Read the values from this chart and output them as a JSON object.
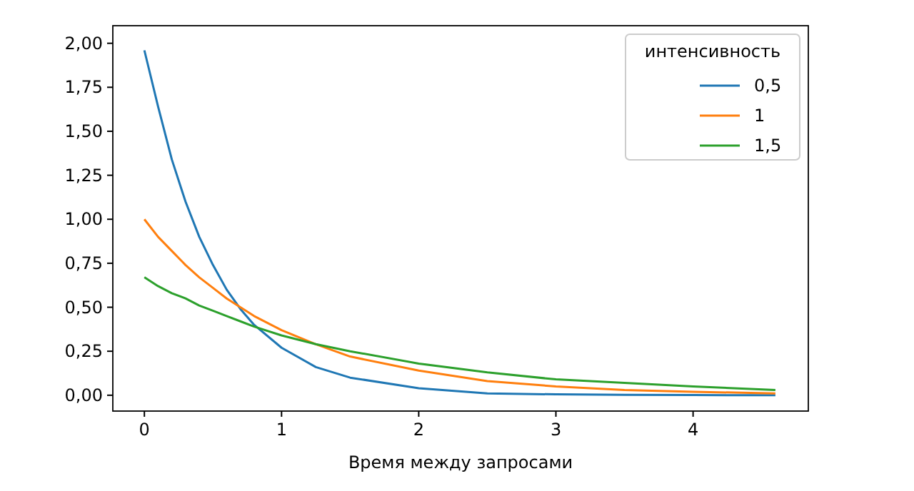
{
  "chart_data": {
    "type": "line",
    "xlabel": "Время между запросами",
    "legend_title": "интенсивность",
    "legend": "top right",
    "grid": false,
    "x": [
      0,
      0.1,
      0.2,
      0.3,
      0.4,
      0.5,
      0.6,
      0.7,
      0.8,
      1.0,
      1.25,
      1.5,
      2,
      2.5,
      3,
      3.5,
      4,
      4.6
    ],
    "series": [
      {
        "name": "0,5",
        "color": "#1f77b4",
        "values": [
          1.96,
          1.64,
          1.34,
          1.1,
          0.9,
          0.74,
          0.6,
          0.49,
          0.4,
          0.27,
          0.16,
          0.1,
          0.04,
          0.01,
          0.005,
          0.002,
          0.001,
          0.0
        ]
      },
      {
        "name": "1",
        "color": "#ff7f0e",
        "values": [
          1.0,
          0.9,
          0.82,
          0.74,
          0.67,
          0.61,
          0.55,
          0.5,
          0.45,
          0.37,
          0.29,
          0.22,
          0.14,
          0.08,
          0.05,
          0.03,
          0.02,
          0.01
        ]
      },
      {
        "name": "1,5",
        "color": "#2ca02c",
        "values": [
          0.67,
          0.62,
          0.58,
          0.55,
          0.51,
          0.48,
          0.45,
          0.42,
          0.39,
          0.34,
          0.29,
          0.25,
          0.18,
          0.13,
          0.09,
          0.07,
          0.05,
          0.03
        ]
      }
    ],
    "xlim": [
      -0.23,
      4.84
    ],
    "ylim": [
      -0.09,
      2.1
    ],
    "xticks": [
      0,
      1,
      2,
      3,
      4
    ],
    "yticks": [
      {
        "value": 0,
        "label": "0,00"
      },
      {
        "value": 0.25,
        "label": "0,25"
      },
      {
        "value": 0.5,
        "label": "0,50"
      },
      {
        "value": 0.75,
        "label": "0,75"
      },
      {
        "value": 1,
        "label": "1,00"
      },
      {
        "value": 1.25,
        "label": "1,25"
      },
      {
        "value": 1.5,
        "label": "1,50"
      },
      {
        "value": 1.75,
        "label": "1,75"
      },
      {
        "value": 2,
        "label": "2,00"
      }
    ]
  }
}
